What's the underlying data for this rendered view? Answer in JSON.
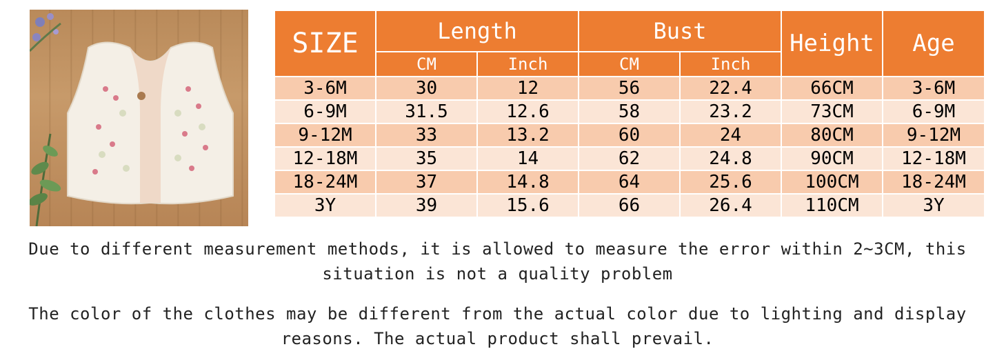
{
  "photo": {
    "alt": "white fleece baby vest with embroidered flowers"
  },
  "table": {
    "size_header": "SIZE",
    "length_header": "Length",
    "bust_header": "Bust",
    "height_header": "Height",
    "age_header": "Age",
    "length_cm": "CM",
    "length_inch": "Inch",
    "bust_cm": "CM",
    "bust_inch": "Inch",
    "rows": [
      {
        "size": "3-6M",
        "length_cm": "30",
        "length_inch": "12",
        "bust_cm": "56",
        "bust_inch": "22.4",
        "height": "66CM",
        "age": "3-6M"
      },
      {
        "size": "6-9M",
        "length_cm": "31.5",
        "length_inch": "12.6",
        "bust_cm": "58",
        "bust_inch": "23.2",
        "height": "73CM",
        "age": "6-9M"
      },
      {
        "size": "9-12M",
        "length_cm": "33",
        "length_inch": "13.2",
        "bust_cm": "60",
        "bust_inch": "24",
        "height": "80CM",
        "age": "9-12M"
      },
      {
        "size": "12-18M",
        "length_cm": "35",
        "length_inch": "14",
        "bust_cm": "62",
        "bust_inch": "24.8",
        "height": "90CM",
        "age": "12-18M"
      },
      {
        "size": "18-24M",
        "length_cm": "37",
        "length_inch": "14.8",
        "bust_cm": "64",
        "bust_inch": "25.6",
        "height": "100CM",
        "age": "18-24M"
      },
      {
        "size": "3Y",
        "length_cm": "39",
        "length_inch": "15.6",
        "bust_cm": "66",
        "bust_inch": "26.4",
        "height": "110CM",
        "age": "3Y"
      }
    ]
  },
  "notes": {
    "measurement": "Due to different measurement methods, it is allowed to measure the error within 2~3CM, this situation is not a quality problem",
    "color": "The color of the clothes may be different from the actual color due to lighting and display reasons. The actual product shall prevail."
  },
  "colors": {
    "header_bg": "#ed7d31",
    "row_odd": "#f8cbad",
    "row_even": "#fbe5d6",
    "header_text": "#ffffff"
  }
}
